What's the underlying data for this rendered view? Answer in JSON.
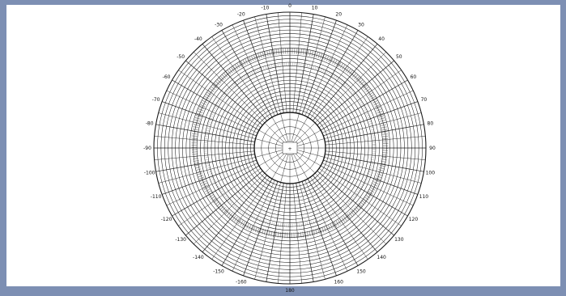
{
  "figure": {
    "type": "polar-grid-plot",
    "line_color": "#1a1a1a",
    "frame_color": "#7d8fb3",
    "inner_ring_marker": "+",
    "angle_labels": [
      {
        "text": "0",
        "angle": 0
      },
      {
        "text": "10",
        "angle": 10
      },
      {
        "text": "20",
        "angle": 20
      },
      {
        "text": "30",
        "angle": 30
      },
      {
        "text": "40",
        "angle": 40
      },
      {
        "text": "50",
        "angle": 50
      },
      {
        "text": "60",
        "angle": 60
      },
      {
        "text": "70",
        "angle": 70
      },
      {
        "text": "80",
        "angle": 80
      },
      {
        "text": "90",
        "angle": 90
      },
      {
        "text": "100",
        "angle": 100
      },
      {
        "text": "110",
        "angle": 110
      },
      {
        "text": "120",
        "angle": 120
      },
      {
        "text": "130",
        "angle": 130
      },
      {
        "text": "140",
        "angle": 140
      },
      {
        "text": "150",
        "angle": 150
      },
      {
        "text": "160",
        "angle": 160
      },
      {
        "text": "180",
        "angle": 180
      },
      {
        "text": "-160",
        "angle": 200
      },
      {
        "text": "-150",
        "angle": 210
      },
      {
        "text": "-140",
        "angle": 220
      },
      {
        "text": "-130",
        "angle": 230
      },
      {
        "text": "-120",
        "angle": 240
      },
      {
        "text": "-110",
        "angle": 250
      },
      {
        "text": "-100",
        "angle": 260
      },
      {
        "text": "-90",
        "angle": 270
      },
      {
        "text": "-80",
        "angle": 280
      },
      {
        "text": "-70",
        "angle": 290
      },
      {
        "text": "-60",
        "angle": 300
      },
      {
        "text": "-50",
        "angle": 310
      },
      {
        "text": "-40",
        "angle": 320
      },
      {
        "text": "-30",
        "angle": 330
      },
      {
        "text": "-20",
        "angle": 340
      },
      {
        "text": "-10",
        "angle": 350
      }
    ]
  }
}
